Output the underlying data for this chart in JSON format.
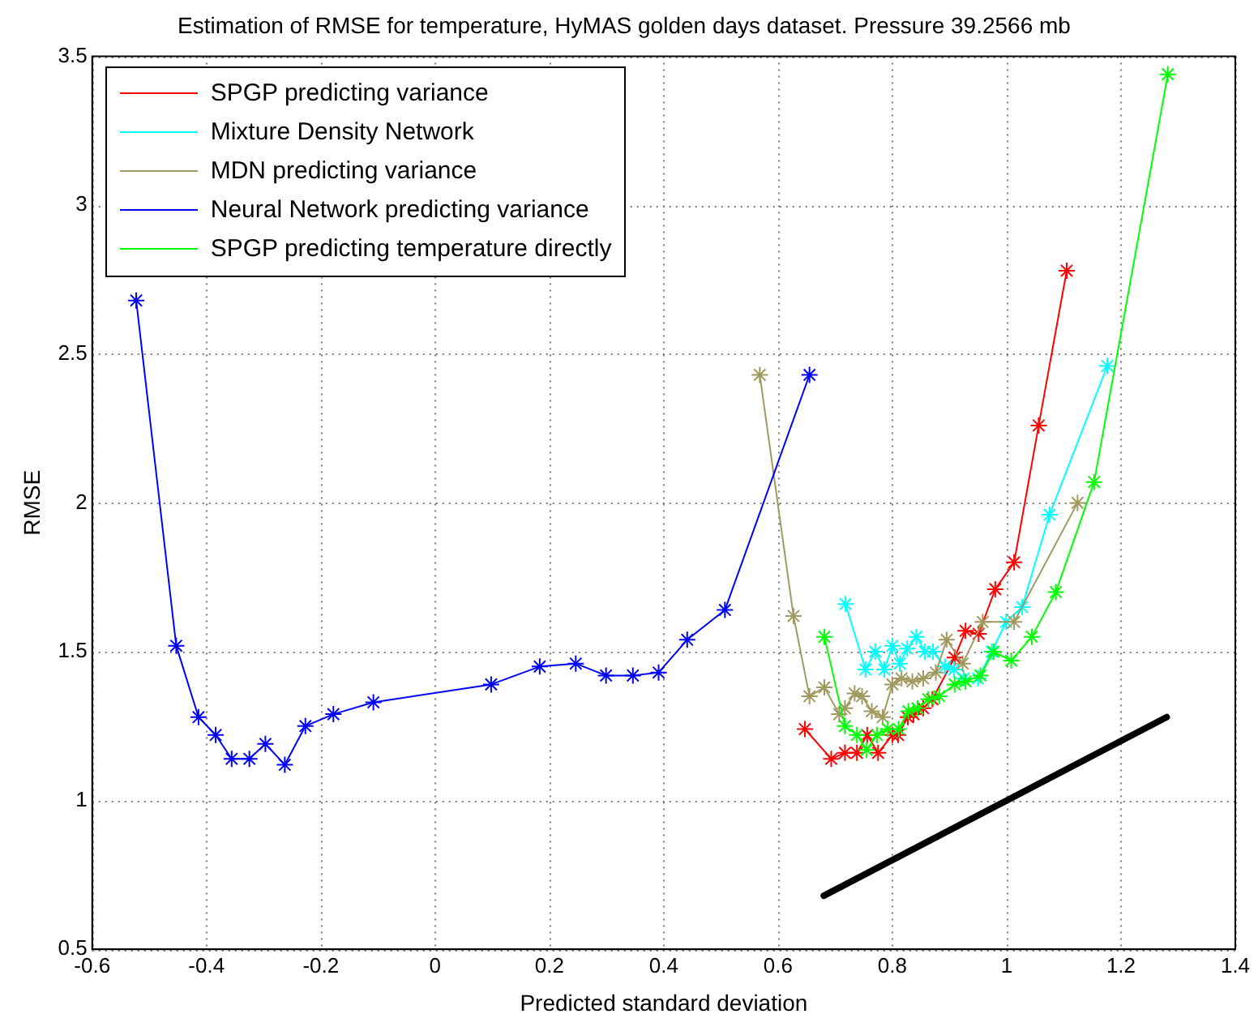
{
  "chart_data": {
    "type": "line",
    "title": "Estimation of RMSE for temperature, HyMAS golden days dataset. Pressure 39.2566 mb",
    "xlabel": "Predicted standard deviation",
    "ylabel": "RMSE",
    "xlim": [
      -0.6,
      1.4
    ],
    "xticks": [
      -0.6,
      -0.4,
      -0.2,
      0,
      0.2,
      0.4,
      0.6,
      0.8,
      1,
      1.2,
      1.4
    ],
    "ylim": [
      0.5,
      3.5
    ],
    "yticks": [
      0.5,
      1,
      1.5,
      2,
      2.5,
      3,
      3.5
    ],
    "grid": true,
    "legend": "top left",
    "marker": "cross",
    "line_style": "solid",
    "series": [
      {
        "name": "SPGP predicting variance",
        "color": "#ff0000",
        "x": [
          0.647,
          0.693,
          0.717,
          0.738,
          0.756,
          0.775,
          0.8,
          0.81,
          0.827,
          0.837,
          0.854,
          0.87,
          0.909,
          0.928,
          0.951,
          0.98,
          1.013,
          1.056,
          1.105
        ],
        "values": [
          1.24,
          1.14,
          1.16,
          1.16,
          1.22,
          1.16,
          1.22,
          1.22,
          1.28,
          1.29,
          1.31,
          1.34,
          1.48,
          1.57,
          1.56,
          1.71,
          1.8,
          2.26,
          2.78
        ]
      },
      {
        "name": "Mixture Density Network",
        "color": "#00ffff",
        "x": [
          0.718,
          0.753,
          0.77,
          0.786,
          0.8,
          0.813,
          0.826,
          0.842,
          0.857,
          0.871,
          0.892,
          0.908,
          0.925,
          0.95,
          0.974,
          0.999,
          1.027,
          1.075,
          1.176
        ],
        "values": [
          1.66,
          1.44,
          1.5,
          1.44,
          1.52,
          1.46,
          1.51,
          1.55,
          1.5,
          1.5,
          1.45,
          1.44,
          1.41,
          1.41,
          1.5,
          1.6,
          1.65,
          1.96,
          2.46
        ]
      },
      {
        "name": "MDN predicting variance",
        "color": "#a09a60",
        "x": [
          0.568,
          0.627,
          0.655,
          0.681,
          0.707,
          0.717,
          0.734,
          0.747,
          0.764,
          0.783,
          0.8,
          0.816,
          0.835,
          0.854,
          0.876,
          0.895,
          0.923,
          0.958,
          1.013,
          1.124
        ],
        "values": [
          2.43,
          1.62,
          1.35,
          1.38,
          1.29,
          1.31,
          1.36,
          1.35,
          1.3,
          1.28,
          1.39,
          1.41,
          1.4,
          1.41,
          1.43,
          1.54,
          1.46,
          1.6,
          1.6,
          2.0
        ]
      },
      {
        "name": "Neural Network predicting variance",
        "color": "#0000ff",
        "x": [
          -0.523,
          -0.453,
          -0.414,
          -0.384,
          -0.356,
          -0.325,
          -0.297,
          -0.263,
          -0.227,
          -0.178,
          -0.108,
          0.098,
          0.183,
          0.246,
          0.299,
          0.346,
          0.391,
          0.441,
          0.507,
          0.655
        ],
        "values": [
          2.68,
          1.52,
          1.28,
          1.22,
          1.14,
          1.14,
          1.19,
          1.12,
          1.25,
          1.29,
          1.33,
          1.39,
          1.45,
          1.46,
          1.42,
          1.42,
          1.43,
          1.54,
          1.64,
          2.43
        ]
      },
      {
        "name": "SPGP predicting temperature directly",
        "color": "#00ff00",
        "x": [
          0.681,
          0.717,
          0.738,
          0.755,
          0.773,
          0.792,
          0.811,
          0.828,
          0.844,
          0.863,
          0.882,
          0.909,
          0.928,
          0.954,
          0.977,
          1.008,
          1.044,
          1.086,
          1.153,
          1.282
        ],
        "values": [
          1.55,
          1.25,
          1.22,
          1.17,
          1.22,
          1.24,
          1.24,
          1.3,
          1.31,
          1.34,
          1.35,
          1.39,
          1.4,
          1.42,
          1.5,
          1.47,
          1.55,
          1.7,
          2.07,
          3.44
        ]
      },
      {
        "color": "#000000",
        "marker": "none",
        "x": [
          0.68,
          1.28
        ],
        "values": [
          0.68,
          1.28
        ]
      }
    ]
  }
}
